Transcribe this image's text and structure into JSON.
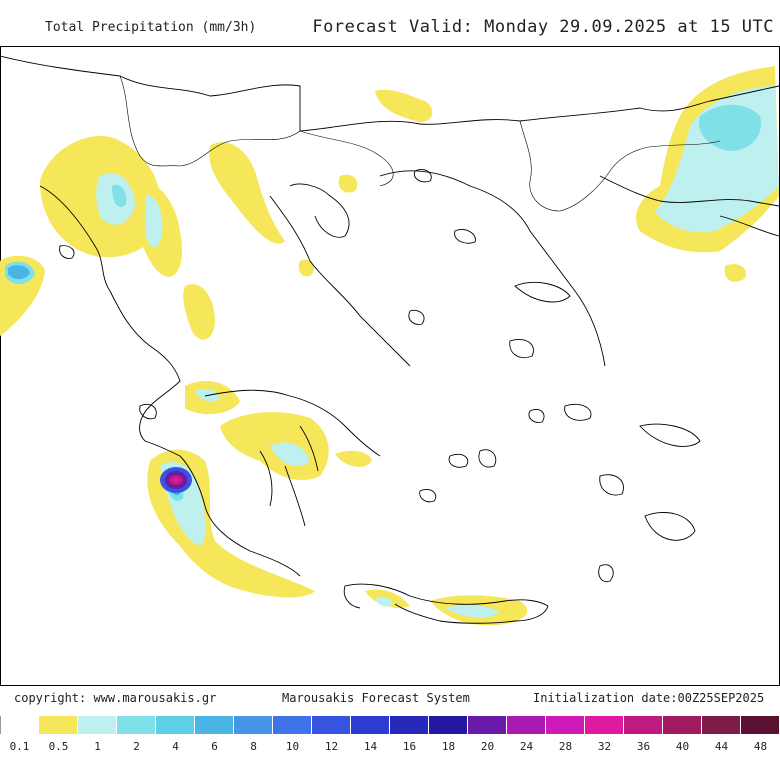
{
  "header": {
    "product_title": "Total Precipitation (mm/3h)",
    "forecast_label": "Forecast Valid:",
    "forecast_time": "Monday 29.09.2025 at 15 UTC"
  },
  "footer": {
    "copyright": "copyright: www.marousakis.gr",
    "system": "Marousakis Forecast System",
    "initialization": "Initialization date:00Z25SEP2025"
  },
  "legend": {
    "labels": [
      "0.1",
      "0.5",
      "1",
      "2",
      "4",
      "6",
      "8",
      "10",
      "12",
      "14",
      "16",
      "18",
      "20",
      "24",
      "28",
      "32",
      "36",
      "40",
      "44",
      "48"
    ],
    "colors": [
      "#ffffff",
      "#f5e65a",
      "#bff0f0",
      "#7fe0e8",
      "#5ecfe6",
      "#4ab4e4",
      "#4596e6",
      "#3e74e8",
      "#3654e0",
      "#2c3cd0",
      "#2528b8",
      "#2418a0",
      "#6a1aa8",
      "#a81ab0",
      "#d01ab8",
      "#e01aa0",
      "#c01a80",
      "#a01a60",
      "#801a48",
      "#5a1030"
    ]
  },
  "map": {
    "coastline_color": "#000000",
    "precip_low_color": "#f5e65a",
    "precip_mid_color": "#bff0f0",
    "precip_high_color": "#7fe0e8",
    "precip_peak_color": "#c01a80"
  }
}
